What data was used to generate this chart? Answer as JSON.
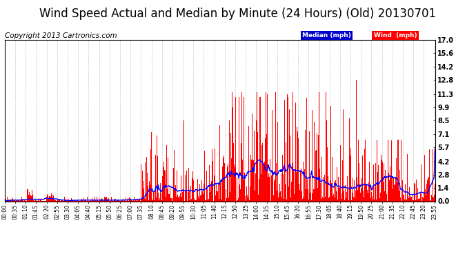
{
  "title": "Wind Speed Actual and Median by Minute (24 Hours) (Old) 20130701",
  "copyright": "Copyright 2013 Cartronics.com",
  "yticks": [
    0.0,
    1.4,
    2.8,
    4.2,
    5.7,
    7.1,
    8.5,
    9.9,
    11.3,
    12.8,
    14.2,
    15.6,
    17.0
  ],
  "ylim": [
    0.0,
    17.0
  ],
  "bg_color": "#ffffff",
  "grid_color": "#c8c8c8",
  "wind_color": "#ff0000",
  "median_color": "#0000ff",
  "title_fontsize": 12,
  "copyright_fontsize": 7.5,
  "xtick_interval_minutes": 35,
  "total_minutes": 1440,
  "seed": 1234
}
